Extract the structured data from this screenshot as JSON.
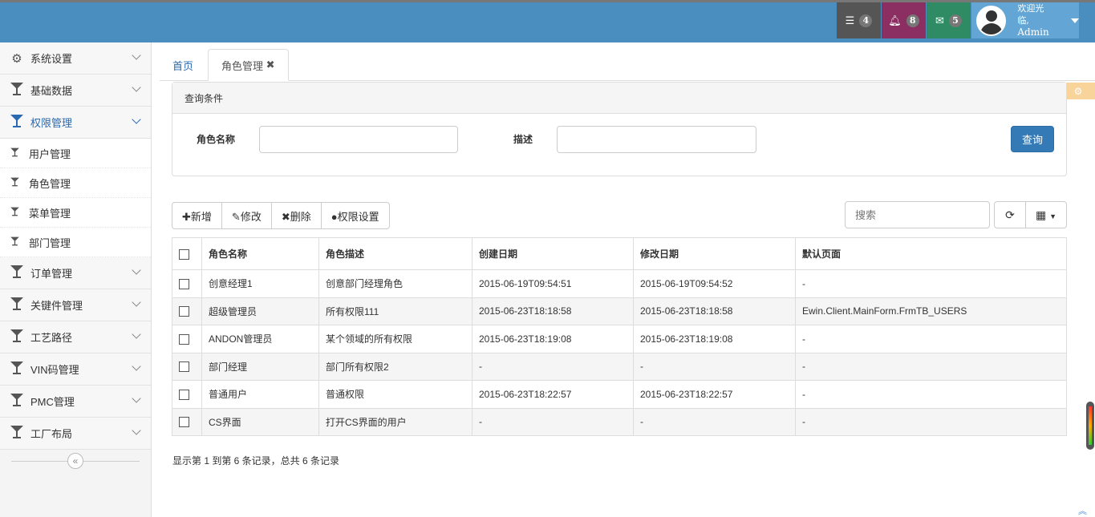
{
  "topbar": {
    "tasks_count": "4",
    "notifications_count": "8",
    "messages_count": "5",
    "welcome": "欢迎光临,",
    "user": "Admin",
    "colors": {
      "bar": "#4a8ebf",
      "tasks": "#555555",
      "notifications": "#8b2e62",
      "messages": "#2e8b63",
      "user": "#63a6d5"
    }
  },
  "sidebar": {
    "items": [
      {
        "label": "系统设置",
        "icon": "gear-icon"
      },
      {
        "label": "基础数据",
        "icon": "filter-icon"
      },
      {
        "label": "权限管理",
        "icon": "filter-icon",
        "active": true,
        "children": [
          "用户管理",
          "角色管理",
          "菜单管理",
          "部门管理"
        ]
      },
      {
        "label": "订单管理",
        "icon": "filter-icon"
      },
      {
        "label": "关键件管理",
        "icon": "filter-icon"
      },
      {
        "label": "工艺路径",
        "icon": "filter-icon"
      },
      {
        "label": "VIN码管理",
        "icon": "filter-icon"
      },
      {
        "label": "PMC管理",
        "icon": "filter-icon"
      },
      {
        "label": "工厂布局",
        "icon": "filter-icon"
      }
    ]
  },
  "tabs": {
    "home": "首页",
    "current": "角色管理"
  },
  "query": {
    "title": "查询条件",
    "role_name_label": "角色名称",
    "role_name_value": "",
    "desc_label": "描述",
    "desc_value": "",
    "submit": "查询"
  },
  "toolbar": {
    "add": "新增",
    "edit": "修改",
    "delete": "删除",
    "perm": "权限设置",
    "search_placeholder": "搜索"
  },
  "table": {
    "headers": [
      "角色名称",
      "角色描述",
      "创建日期",
      "修改日期",
      "默认页面"
    ],
    "rows": [
      [
        "创意经理1",
        "创意部门经理角色",
        "2015-06-19T09:54:51",
        "2015-06-19T09:54:52",
        "-"
      ],
      [
        "超级管理员",
        "所有权限111",
        "2015-06-23T18:18:58",
        "2015-06-23T18:18:58",
        "Ewin.Client.MainForm.FrmTB_USERS"
      ],
      [
        "ANDON管理员",
        "某个领域的所有权限",
        "2015-06-23T18:19:08",
        "2015-06-23T18:19:08",
        "-"
      ],
      [
        "部门经理",
        "部门所有权限2",
        "-",
        "-",
        "-"
      ],
      [
        "普通用户",
        "普通权限",
        "2015-06-23T18:22:57",
        "2015-06-23T18:22:57",
        "-"
      ],
      [
        "CS界面",
        "打开CS界面的用户",
        "-",
        "-",
        "-"
      ]
    ]
  },
  "pagination": {
    "summary": "显示第 1 到第 6 条记录，总共 6 条记录"
  }
}
